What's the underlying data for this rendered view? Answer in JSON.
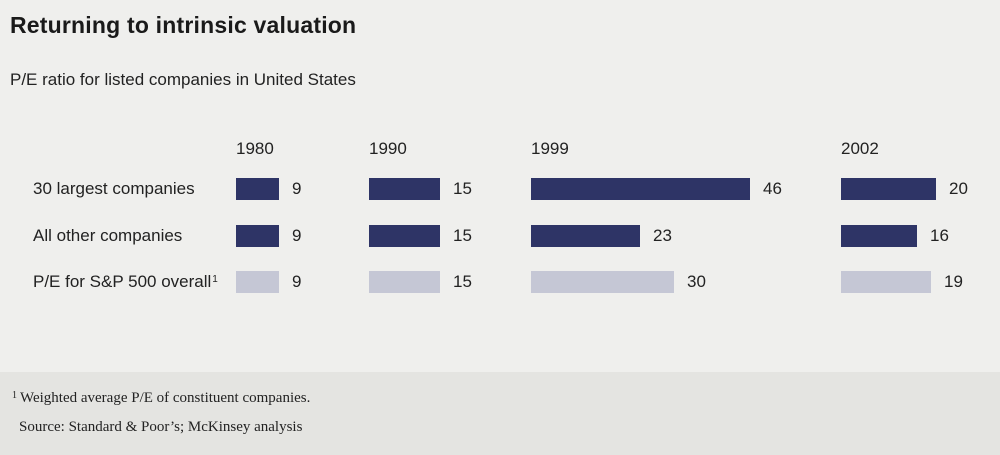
{
  "chart_data": {
    "type": "bar",
    "title": "Returning to intrinsic valuation",
    "subtitle": "P/E ratio for listed companies in United States",
    "groups": [
      "1980",
      "1990",
      "1999",
      "2002"
    ],
    "categories": [
      "30 largest companies",
      "All other companies",
      "P/E for S&P 500 overall"
    ],
    "category_footnote_marks": [
      "",
      "",
      "1"
    ],
    "series": [
      {
        "group": "1980",
        "values": [
          9,
          9,
          9
        ]
      },
      {
        "group": "1990",
        "values": [
          15,
          15,
          15
        ]
      },
      {
        "group": "1999",
        "values": [
          46,
          23,
          30
        ]
      },
      {
        "group": "2002",
        "values": [
          20,
          16,
          19
        ]
      }
    ],
    "colors": {
      "dark": "#2e3466",
      "light": "#c5c7d5"
    },
    "xlabel": "",
    "ylabel": "",
    "grid": false,
    "legend": "none"
  },
  "footnote": {
    "mark": "1",
    "text": "Weighted average P/E of constituent companies."
  },
  "source": "Source: Standard & Poor’s; McKinsey analysis"
}
